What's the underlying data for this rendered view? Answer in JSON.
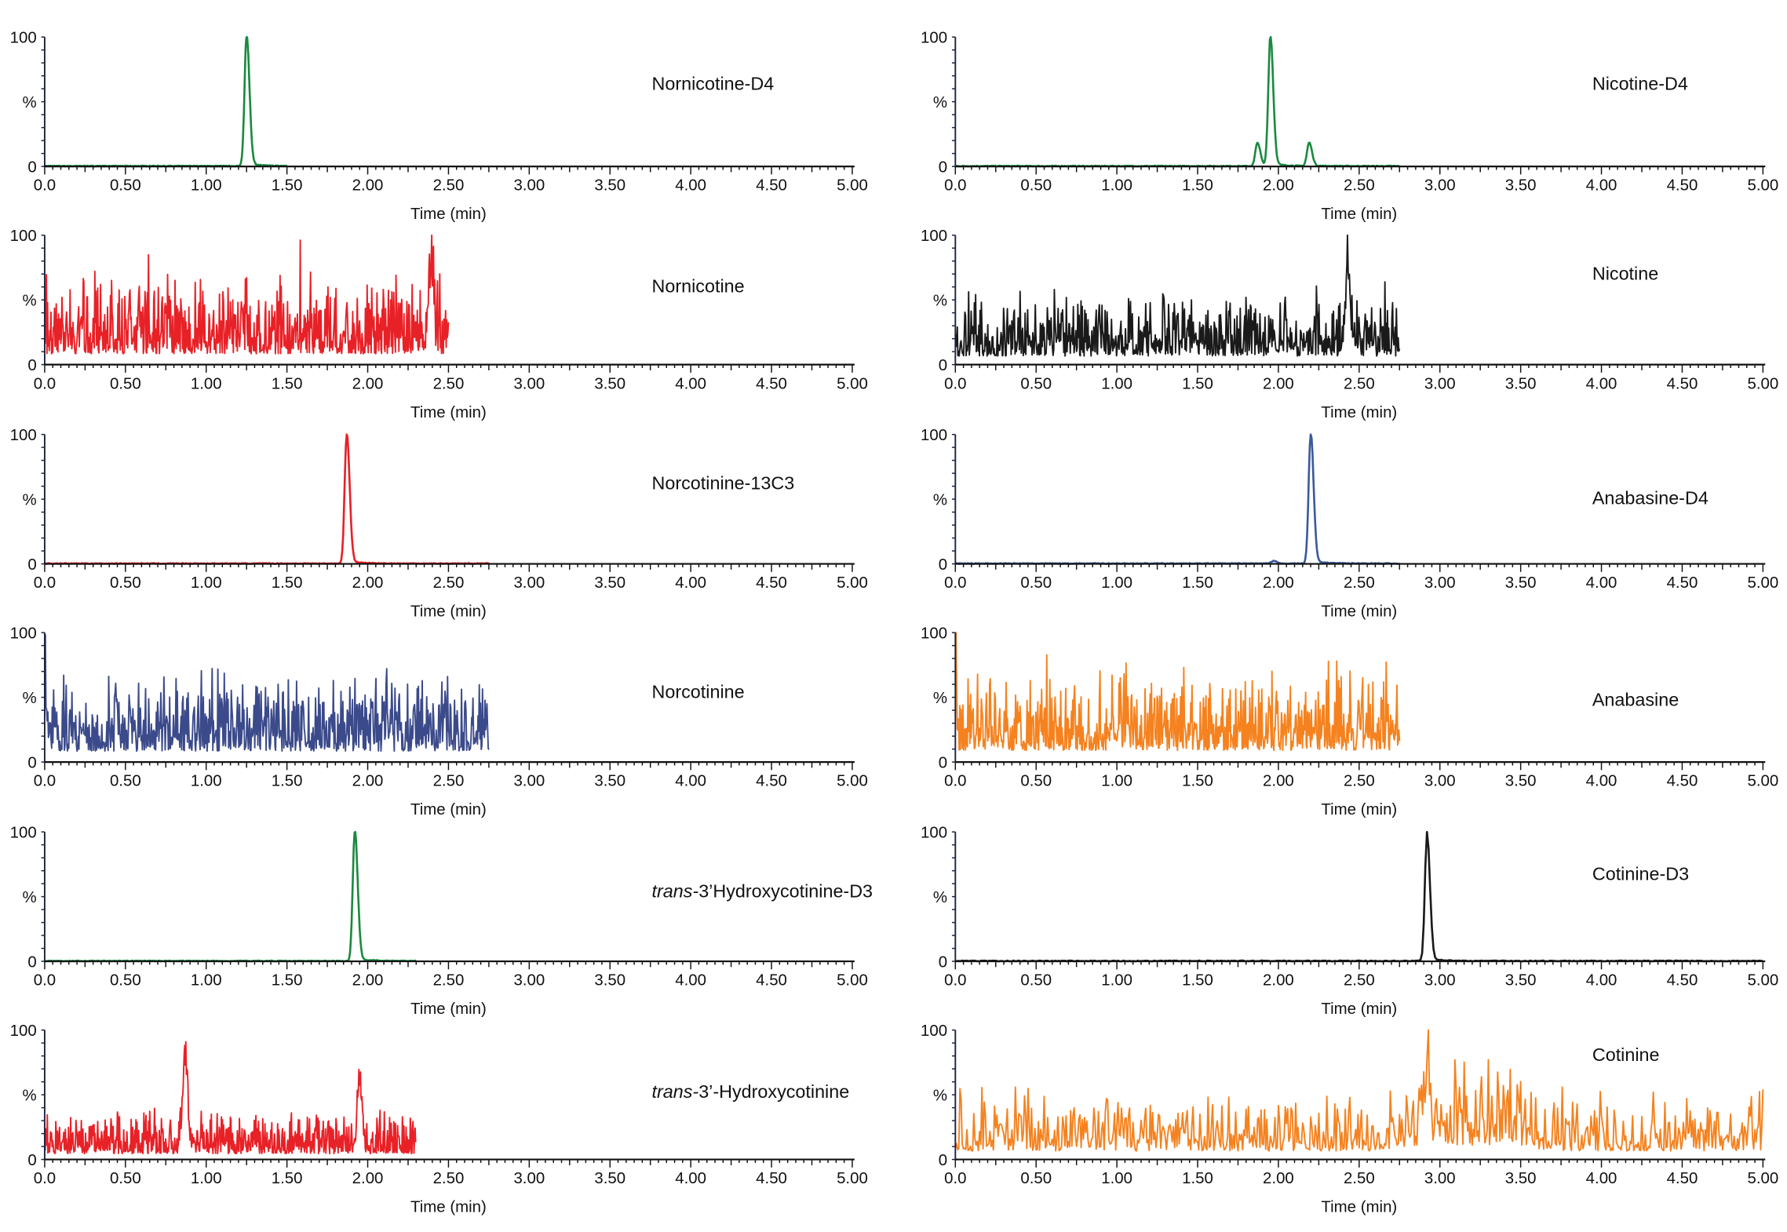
{
  "chart_data": {
    "type": "line",
    "xlabel": "Time (min)",
    "ylabel": "%",
    "xlim": [
      0,
      5.0
    ],
    "ylim": [
      0,
      100
    ],
    "x_ticks": [
      "0.0",
      "0.50",
      "1.00",
      "1.50",
      "2.00",
      "2.50",
      "3.00",
      "3.50",
      "4.00",
      "4.50",
      "5.00"
    ],
    "y_ticks": [
      "0",
      "%",
      "100"
    ],
    "grid": false,
    "panels": [
      {
        "column": "left",
        "row": 1,
        "label": "Nornicotine-D4",
        "italic_prefix": "",
        "color": "#1a8a3f",
        "end_time": 1.5,
        "noise": 0,
        "baseline": 0,
        "peaks": [
          {
            "rt": 1.25,
            "height": 100
          }
        ]
      },
      {
        "column": "right",
        "row": 1,
        "label": "Nicotine-D4",
        "italic_prefix": "",
        "color": "#1a8a3f",
        "end_time": 2.75,
        "noise": 0,
        "baseline": 0,
        "peaks": [
          {
            "rt": 1.87,
            "height": 18
          },
          {
            "rt": 1.95,
            "height": 100
          },
          {
            "rt": 2.19,
            "height": 18
          }
        ]
      },
      {
        "column": "left",
        "row": 2,
        "label": "Nornicotine",
        "italic_prefix": "",
        "color": "#e82127",
        "end_time": 2.5,
        "noise": 1,
        "baseline": 28,
        "peaks": [
          {
            "rt": 2.39,
            "height": 100
          }
        ]
      },
      {
        "column": "right",
        "row": 2,
        "label": "Nicotine",
        "italic_prefix": "",
        "color": "#1a1a1a",
        "end_time": 2.75,
        "noise": 1,
        "baseline": 22,
        "peaks": [
          {
            "rt": 2.43,
            "height": 100
          }
        ]
      },
      {
        "column": "left",
        "row": 3,
        "label": "Norcotinine-13C3",
        "italic_prefix": "",
        "color": "#e82127",
        "end_time": 2.75,
        "noise": 0,
        "baseline": 0,
        "peaks": [
          {
            "rt": 1.87,
            "height": 100
          }
        ]
      },
      {
        "column": "right",
        "row": 3,
        "label": "Anabasine-D4",
        "italic_prefix": "",
        "color": "#3a5a9c",
        "end_time": 2.75,
        "noise": 0,
        "baseline": 0,
        "peaks": [
          {
            "rt": 1.97,
            "height": 2
          },
          {
            "rt": 2.2,
            "height": 100
          }
        ]
      },
      {
        "column": "left",
        "row": 4,
        "label": "Norcotinine",
        "italic_prefix": "",
        "color": "#3b4a8a",
        "end_time": 2.75,
        "noise": 1,
        "baseline": 28,
        "peaks": [
          {
            "rt": 0.0,
            "height": 100
          }
        ]
      },
      {
        "column": "right",
        "row": 4,
        "label": "Anabasine",
        "italic_prefix": "",
        "color": "#f5821f",
        "end_time": 2.75,
        "noise": 1,
        "baseline": 30,
        "peaks": [
          {
            "rt": 0.0,
            "height": 100
          }
        ]
      },
      {
        "column": "left",
        "row": 5,
        "label": "3’Hydroxycotinine-D3",
        "italic_prefix": "trans-",
        "color": "#1a8a3f",
        "end_time": 2.3,
        "noise": 0,
        "baseline": 0,
        "peaks": [
          {
            "rt": 1.92,
            "height": 100
          }
        ]
      },
      {
        "column": "right",
        "row": 5,
        "label": "Cotinine-D3",
        "italic_prefix": "",
        "color": "#1a1a1a",
        "end_time": 5.0,
        "noise": 0,
        "baseline": 0,
        "peaks": [
          {
            "rt": 2.92,
            "height": 100
          }
        ]
      },
      {
        "column": "left",
        "row": 6,
        "label": "3’-Hydroxycotinine",
        "italic_prefix": "trans-",
        "color": "#e82127",
        "end_time": 2.3,
        "noise": 1,
        "baseline": 15,
        "peaks": [
          {
            "rt": 0.87,
            "height": 100
          },
          {
            "rt": 1.95,
            "height": 75
          }
        ]
      },
      {
        "column": "right",
        "row": 6,
        "label": "Cotinine",
        "italic_prefix": "",
        "color": "#f5821f",
        "end_time": 5.0,
        "noise": 1,
        "baseline": 22,
        "peaks": [
          {
            "rt": 2.92,
            "height": 100
          }
        ]
      }
    ]
  }
}
